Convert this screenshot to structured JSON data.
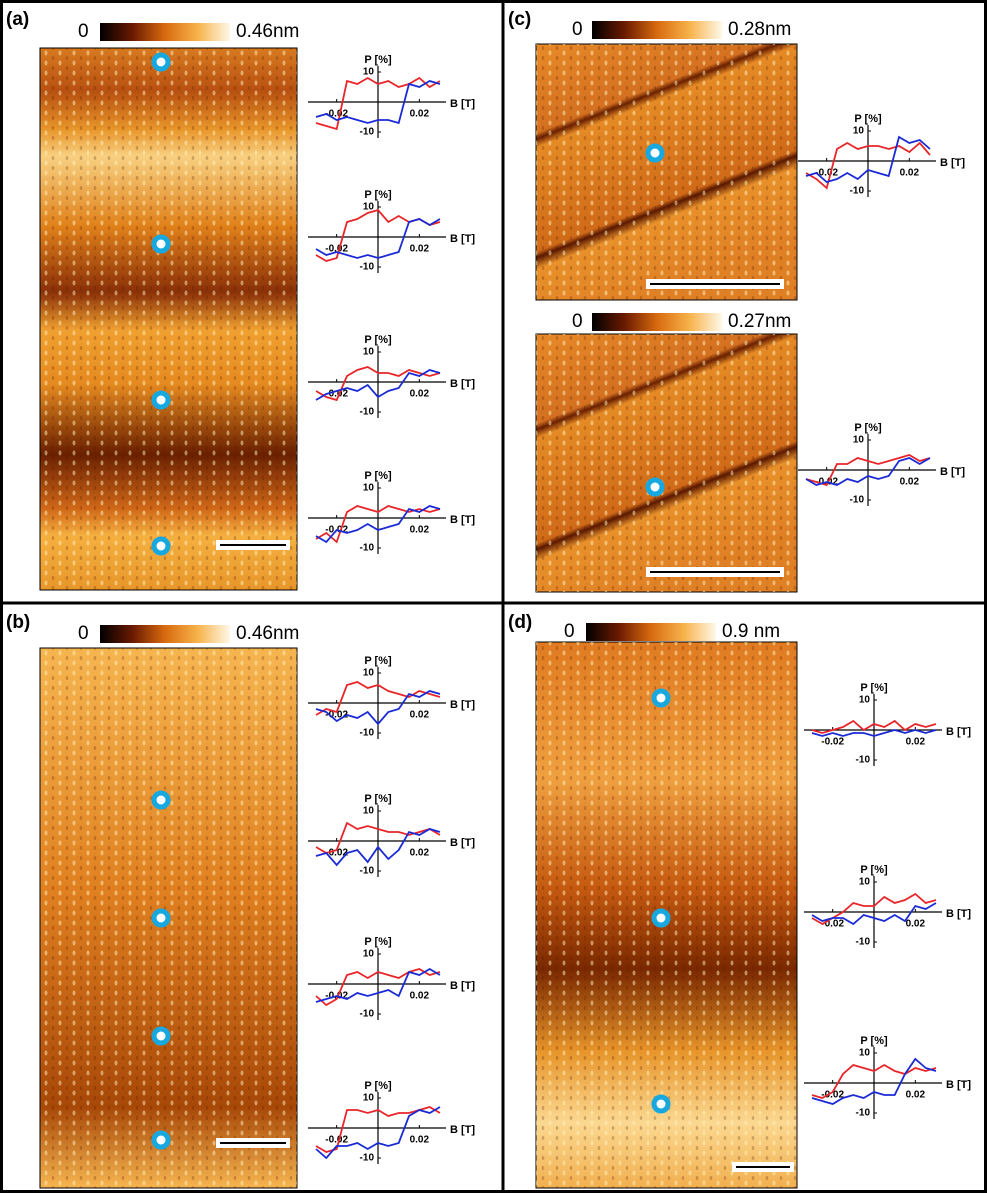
{
  "panels": [
    {
      "label": "(a)",
      "colorbars": [
        {
          "min": "0",
          "max": "0.46nm"
        }
      ]
    },
    {
      "label": "(b)",
      "colorbars": [
        {
          "min": "0",
          "max": "0.46nm"
        }
      ]
    },
    {
      "label": "(c)",
      "colorbars": [
        {
          "min": "0",
          "max": "0.28nm"
        },
        {
          "min": "0",
          "max": "0.27nm"
        }
      ]
    },
    {
      "label": "(d)",
      "colorbars": [
        {
          "min": "0",
          "max": "0.9 nm"
        }
      ]
    }
  ],
  "chart_data": [
    {
      "type": "line",
      "y_label": "P [%]",
      "x_label": "B [T]",
      "x": [
        -0.03,
        -0.025,
        -0.02,
        -0.015,
        -0.01,
        -0.005,
        0,
        0.005,
        0.01,
        0.015,
        0.02,
        0.025,
        0.03
      ],
      "xlim": [
        -0.03,
        0.03
      ],
      "ylim": [
        -12,
        12
      ],
      "xticks": [
        -0.02,
        0.02
      ],
      "yticks": [
        10,
        -10
      ],
      "series": [
        {
          "color": "#e8262a",
          "values": [
            -7,
            -8,
            -9,
            7,
            6,
            8,
            6,
            7,
            5,
            6,
            8,
            5,
            7
          ]
        },
        {
          "color": "#1a2bd6",
          "values": [
            -5,
            -4,
            -6,
            -5,
            -6,
            -7,
            -6,
            -6,
            -7,
            6,
            5,
            7,
            6
          ]
        }
      ]
    },
    {
      "type": "line",
      "y_label": "P [%]",
      "x_label": "B [T]",
      "x": [
        -0.03,
        -0.025,
        -0.02,
        -0.015,
        -0.01,
        -0.005,
        0,
        0.005,
        0.01,
        0.015,
        0.02,
        0.025,
        0.03
      ],
      "xlim": [
        -0.03,
        0.03
      ],
      "ylim": [
        -12,
        12
      ],
      "xticks": [
        -0.02,
        0.02
      ],
      "yticks": [
        10,
        -10
      ],
      "series": [
        {
          "color": "#e8262a",
          "values": [
            -6,
            -8,
            -7,
            5,
            6,
            8,
            9,
            5,
            7,
            5,
            6,
            4,
            5
          ]
        },
        {
          "color": "#1a2bd6",
          "values": [
            -4,
            -6,
            -5,
            -6,
            -7,
            -6,
            -7,
            -6,
            -5,
            5,
            6,
            4,
            6
          ]
        }
      ]
    },
    {
      "type": "line",
      "y_label": "P [%]",
      "x_label": "B [T]",
      "x": [
        -0.03,
        -0.025,
        -0.02,
        -0.015,
        -0.01,
        -0.005,
        0,
        0.005,
        0.01,
        0.015,
        0.02,
        0.025,
        0.03
      ],
      "xlim": [
        -0.03,
        0.03
      ],
      "ylim": [
        -12,
        12
      ],
      "xticks": [
        -0.02,
        0.02
      ],
      "yticks": [
        10,
        -10
      ],
      "series": [
        {
          "color": "#e8262a",
          "values": [
            -3,
            -5,
            -6,
            2,
            4,
            5,
            3,
            3,
            2,
            4,
            3,
            2,
            3
          ]
        },
        {
          "color": "#1a2bd6",
          "values": [
            -6,
            -4,
            -3,
            -2,
            -3,
            -1,
            -5,
            -3,
            -2,
            3,
            2,
            4,
            3
          ]
        }
      ]
    },
    {
      "type": "line",
      "y_label": "P [%]",
      "x_label": "B [T]",
      "x": [
        -0.03,
        -0.025,
        -0.02,
        -0.015,
        -0.01,
        -0.005,
        0,
        0.005,
        0.01,
        0.015,
        0.02,
        0.025,
        0.03
      ],
      "xlim": [
        -0.03,
        0.03
      ],
      "ylim": [
        -12,
        12
      ],
      "xticks": [
        -0.02,
        0.02
      ],
      "yticks": [
        10,
        -10
      ],
      "series": [
        {
          "color": "#e8262a",
          "values": [
            -7,
            -5,
            -8,
            2,
            4,
            3,
            2,
            4,
            3,
            2,
            3,
            2,
            3
          ]
        },
        {
          "color": "#1a2bd6",
          "values": [
            -6,
            -8,
            -4,
            -5,
            -4,
            -2,
            -4,
            -3,
            -2,
            3,
            2,
            4,
            3
          ]
        }
      ]
    },
    {
      "type": "line",
      "y_label": "P [%]",
      "x_label": "B [T]",
      "x": [
        -0.03,
        -0.025,
        -0.02,
        -0.015,
        -0.01,
        -0.005,
        0,
        0.005,
        0.01,
        0.015,
        0.02,
        0.025,
        0.03
      ],
      "xlim": [
        -0.03,
        0.03
      ],
      "ylim": [
        -12,
        12
      ],
      "xticks": [
        -0.02,
        0.02
      ],
      "yticks": [
        10,
        -10
      ],
      "series": [
        {
          "color": "#e8262a",
          "values": [
            -4,
            -2,
            -3,
            6,
            7,
            5,
            6,
            4,
            3,
            2,
            4,
            3,
            2
          ]
        },
        {
          "color": "#1a2bd6",
          "values": [
            -2,
            -3,
            -6,
            -4,
            -5,
            -3,
            -7,
            -3,
            -2,
            3,
            2,
            4,
            3
          ]
        }
      ]
    },
    {
      "type": "line",
      "y_label": "P [%]",
      "x_label": "B [T]",
      "x": [
        -0.03,
        -0.025,
        -0.02,
        -0.015,
        -0.01,
        -0.005,
        0,
        0.005,
        0.01,
        0.015,
        0.02,
        0.025,
        0.03
      ],
      "xlim": [
        -0.03,
        0.03
      ],
      "ylim": [
        -12,
        12
      ],
      "xticks": [
        -0.02,
        0.02
      ],
      "yticks": [
        10,
        -10
      ],
      "series": [
        {
          "color": "#e8262a",
          "values": [
            -2,
            -4,
            -3,
            6,
            4,
            5,
            4,
            3,
            3,
            2,
            3,
            4,
            2
          ]
        },
        {
          "color": "#1a2bd6",
          "values": [
            -5,
            -4,
            -8,
            -4,
            -3,
            -7,
            -2,
            -6,
            -3,
            3,
            2,
            4,
            3
          ]
        }
      ]
    },
    {
      "type": "line",
      "y_label": "P [%]",
      "x_label": "B [T]",
      "x": [
        -0.03,
        -0.025,
        -0.02,
        -0.015,
        -0.01,
        -0.005,
        0,
        0.005,
        0.01,
        0.015,
        0.02,
        0.025,
        0.03
      ],
      "xlim": [
        -0.03,
        0.03
      ],
      "ylim": [
        -12,
        12
      ],
      "xticks": [
        -0.02,
        0.02
      ],
      "yticks": [
        10,
        -10
      ],
      "series": [
        {
          "color": "#e8262a",
          "values": [
            -4,
            -7,
            -5,
            3,
            4,
            2,
            4,
            3,
            2,
            4,
            5,
            3,
            4
          ]
        },
        {
          "color": "#1a2bd6",
          "values": [
            -6,
            -5,
            -4,
            -5,
            -3,
            -4,
            -3,
            -2,
            -4,
            4,
            3,
            5,
            3
          ]
        }
      ]
    },
    {
      "type": "line",
      "y_label": "P [%]",
      "x_label": "B [T]",
      "x": [
        -0.03,
        -0.025,
        -0.02,
        -0.015,
        -0.01,
        -0.005,
        0,
        0.005,
        0.01,
        0.015,
        0.02,
        0.025,
        0.03
      ],
      "xlim": [
        -0.03,
        0.03
      ],
      "ylim": [
        -12,
        12
      ],
      "xticks": [
        -0.02,
        0.02
      ],
      "yticks": [
        10,
        -10
      ],
      "series": [
        {
          "color": "#e8262a",
          "values": [
            -6,
            -8,
            -7,
            6,
            6,
            5,
            6,
            4,
            5,
            5,
            6,
            7,
            5
          ]
        },
        {
          "color": "#1a2bd6",
          "values": [
            -7,
            -10,
            -6,
            -6,
            -5,
            -7,
            -5,
            -6,
            -5,
            4,
            6,
            5,
            7
          ]
        }
      ]
    },
    {
      "type": "line",
      "y_label": "P [%]",
      "x_label": "B [T]",
      "x": [
        -0.03,
        -0.025,
        -0.02,
        -0.015,
        -0.01,
        -0.005,
        0,
        0.005,
        0.01,
        0.015,
        0.02,
        0.025,
        0.03
      ],
      "xlim": [
        -0.03,
        0.03
      ],
      "ylim": [
        -12,
        12
      ],
      "xticks": [
        -0.02,
        0.02
      ],
      "yticks": [
        10,
        -10
      ],
      "series": [
        {
          "color": "#e8262a",
          "values": [
            -4,
            -6,
            -9,
            4,
            6,
            4,
            5,
            5,
            4,
            5,
            3,
            6,
            2
          ]
        },
        {
          "color": "#1a2bd6",
          "values": [
            -5,
            -4,
            -7,
            -6,
            -4,
            -6,
            -3,
            -4,
            -5,
            8,
            6,
            7,
            4
          ]
        }
      ]
    },
    {
      "type": "line",
      "y_label": "P [%]",
      "x_label": "B [T]",
      "x": [
        -0.03,
        -0.025,
        -0.02,
        -0.015,
        -0.01,
        -0.005,
        0,
        0.005,
        0.01,
        0.015,
        0.02,
        0.025,
        0.03
      ],
      "xlim": [
        -0.03,
        0.03
      ],
      "ylim": [
        -12,
        12
      ],
      "xticks": [
        -0.02,
        0.02
      ],
      "yticks": [
        10,
        -10
      ],
      "series": [
        {
          "color": "#e8262a",
          "values": [
            -3,
            -4,
            -5,
            2,
            2,
            4,
            3,
            2,
            3,
            4,
            5,
            3,
            4
          ]
        },
        {
          "color": "#1a2bd6",
          "values": [
            -3,
            -5,
            -4,
            -5,
            -3,
            -4,
            -2,
            -3,
            -2,
            3,
            4,
            2,
            4
          ]
        }
      ]
    },
    {
      "type": "line",
      "y_label": "P [%]",
      "x_label": "B [T]",
      "x": [
        -0.03,
        -0.025,
        -0.02,
        -0.015,
        -0.01,
        -0.005,
        0,
        0.005,
        0.01,
        0.015,
        0.02,
        0.025,
        0.03
      ],
      "xlim": [
        -0.03,
        0.03
      ],
      "ylim": [
        -12,
        12
      ],
      "xticks": [
        -0.02,
        0.02
      ],
      "yticks": [
        10,
        -10
      ],
      "series": [
        {
          "color": "#e8262a",
          "values": [
            0,
            -1,
            0,
            1,
            3,
            0,
            2,
            1,
            3,
            0,
            2,
            1,
            2
          ]
        },
        {
          "color": "#1a2bd6",
          "values": [
            -1,
            -2,
            -1,
            -2,
            -1,
            -1,
            -2,
            -1,
            0,
            -1,
            0,
            -1,
            0
          ]
        }
      ]
    },
    {
      "type": "line",
      "y_label": "P [%]",
      "x_label": "B [T]",
      "x": [
        -0.03,
        -0.025,
        -0.02,
        -0.015,
        -0.01,
        -0.005,
        0,
        0.005,
        0.01,
        0.015,
        0.02,
        0.025,
        0.03
      ],
      "xlim": [
        -0.03,
        0.03
      ],
      "ylim": [
        -12,
        12
      ],
      "xticks": [
        -0.02,
        0.02
      ],
      "yticks": [
        10,
        -10
      ],
      "series": [
        {
          "color": "#e8262a",
          "values": [
            -2,
            -4,
            -2,
            0,
            3,
            2,
            2,
            5,
            3,
            4,
            6,
            3,
            4
          ]
        },
        {
          "color": "#1a2bd6",
          "values": [
            -1,
            -3,
            -2,
            -2,
            -4,
            -1,
            -2,
            -3,
            -1,
            -3,
            2,
            1,
            3
          ]
        }
      ]
    },
    {
      "type": "line",
      "y_label": "P [%]",
      "x_label": "B [T]",
      "x": [
        -0.03,
        -0.025,
        -0.02,
        -0.015,
        -0.01,
        -0.005,
        0,
        0.005,
        0.01,
        0.015,
        0.02,
        0.025,
        0.03
      ],
      "xlim": [
        -0.03,
        0.03
      ],
      "ylim": [
        -12,
        12
      ],
      "xticks": [
        -0.02,
        0.02
      ],
      "yticks": [
        10,
        -10
      ],
      "series": [
        {
          "color": "#e8262a",
          "values": [
            -4,
            -5,
            -3,
            3,
            6,
            5,
            4,
            6,
            4,
            3,
            5,
            4,
            5
          ]
        },
        {
          "color": "#1a2bd6",
          "values": [
            -5,
            -6,
            -7,
            -5,
            -4,
            -5,
            -3,
            -4,
            -4,
            3,
            8,
            5,
            4
          ]
        }
      ]
    }
  ]
}
